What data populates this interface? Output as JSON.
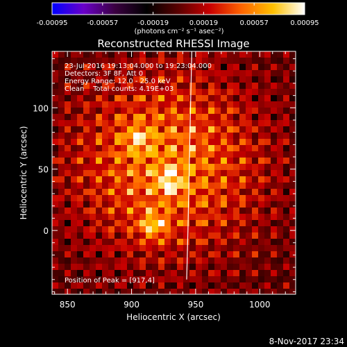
{
  "chart_data": {
    "type": "heatmap",
    "title": "Reconstructed RHESSI Image",
    "xlabel": "Heliocentric X (arcsec)",
    "ylabel": "Heliocentric Y (arcsec)",
    "xlim": [
      838,
      1028
    ],
    "ylim": [
      -52,
      146
    ],
    "x_ticks": [
      850,
      900,
      950,
      1000
    ],
    "y_ticks": [
      0,
      50,
      100
    ],
    "colorbar": {
      "min": -0.00095,
      "max": 0.00095,
      "ticks": [
        "-0.00095",
        "-0.00057",
        "-0.00019",
        "0.00019",
        "0.00057",
        "0.00095"
      ],
      "units": "(photons cm⁻² s⁻¹ asec⁻²)",
      "colormap": [
        "#0000ff",
        "#6a00c8",
        "#3a0040",
        "#000000",
        "#5a0000",
        "#c80000",
        "#ff6400",
        "#ffc000",
        "#ffffff"
      ]
    },
    "annotations": [
      "23-Jul-2016 19:13:04.000 to 19:23:04.000",
      "Detectors: 3F 8F, Att 0",
      "Energy Range: 12.0 - 25.0 keV",
      "Clean    Total counts: 4.19E+03"
    ],
    "peak_label": "Position of Peak = [917,4]",
    "peak_position": [
      917,
      4
    ],
    "bright_regions": [
      {
        "x": 930,
        "y": 40,
        "intensity": 0.9
      },
      {
        "x": 917,
        "y": 4,
        "intensity": 1.0
      },
      {
        "x": 905,
        "y": 75,
        "intensity": 0.75
      }
    ],
    "limb_curve": [
      [
        947,
        146
      ],
      [
        946,
        100
      ],
      [
        945,
        50
      ],
      [
        944,
        0
      ],
      [
        943,
        -40
      ]
    ],
    "grid": false
  },
  "timestamp": "8-Nov-2017 23:34"
}
